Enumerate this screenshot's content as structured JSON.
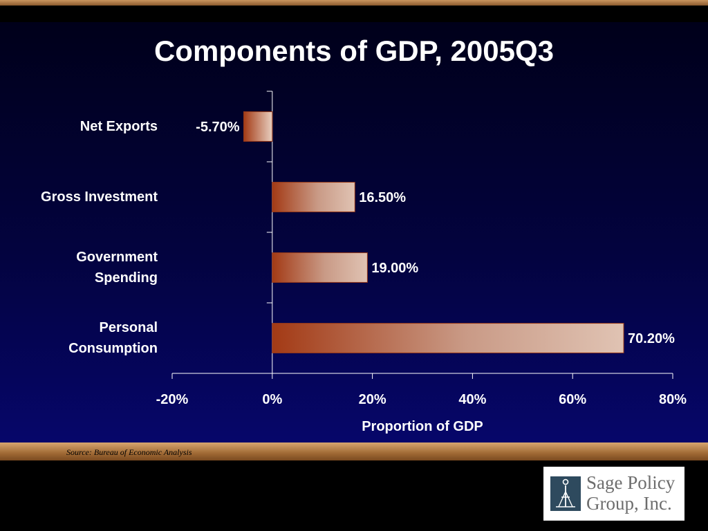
{
  "slide": {
    "source": "Source: Bureau of Economic Analysis",
    "logo": {
      "line1": "Sage Policy",
      "line2": "Group, Inc."
    },
    "colors": {
      "bar_dark": "#a33a15",
      "bar_light": "#e0c3b3",
      "background": "#03033f",
      "band": "#c9955f"
    }
  },
  "chart_data": {
    "type": "bar",
    "orientation": "horizontal",
    "title": "Components of GDP, 2005Q3",
    "xlabel": "Proportion of GDP",
    "ylabel": "",
    "categories": [
      "Net Exports",
      "Gross Investment",
      "Government Spending",
      "Personal Consumption"
    ],
    "category_lines": [
      [
        "Net Exports"
      ],
      [
        "Gross Investment"
      ],
      [
        "Government",
        "Spending"
      ],
      [
        "Personal",
        "Consumption"
      ]
    ],
    "values": [
      -5.7,
      16.5,
      19.0,
      70.2
    ],
    "data_labels": [
      "-5.70%",
      "16.50%",
      "19.00%",
      "70.20%"
    ],
    "xlim": [
      -20,
      80
    ],
    "xticks": [
      -20,
      0,
      20,
      40,
      60,
      80
    ],
    "xtick_labels": [
      "-20%",
      "0%",
      "20%",
      "40%",
      "60%",
      "80%"
    ],
    "grid": false,
    "legend": "none"
  }
}
